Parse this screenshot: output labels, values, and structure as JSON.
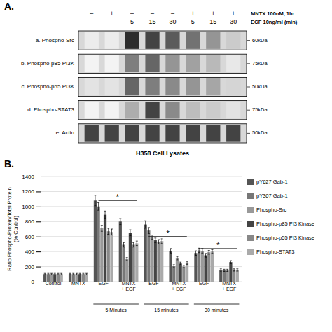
{
  "chart_data": [
    {
      "type": "heatmap",
      "title": "A.",
      "xlabel": "H358 Cell Lysates",
      "y_categories": [
        "a. Phospho-Src",
        "b. Phospho-p85 PI3K",
        "c. Phospho-p55 PI3K",
        "d. Phospho-STAT3",
        "e. Actin"
      ],
      "y2_categories": [
        "60kDa",
        "75kDa",
        "50kDa",
        "75kDa",
        "50kDa"
      ],
      "column_headers": [
        {
          "name": "MNTX 100nM, 1hr",
          "labels": [
            "–",
            "+",
            "–",
            "–",
            "–",
            "+",
            "+",
            "+"
          ]
        },
        {
          "name": "EGF 10ng/ml (min)",
          "labels": [
            "–",
            "–",
            "5",
            "15",
            "30",
            "5",
            "15",
            "30"
          ]
        }
      ],
      "cells": [
        [
          0.08,
          0.08,
          0.9,
          0.8,
          0.7,
          0.6,
          0.45,
          0.22
        ],
        [
          0.05,
          0.05,
          0.55,
          0.65,
          0.45,
          0.4,
          0.3,
          0.1
        ],
        [
          0.12,
          0.12,
          0.65,
          0.55,
          0.5,
          0.45,
          0.38,
          0.18
        ],
        [
          0.05,
          0.05,
          0.35,
          0.8,
          0.5,
          0.28,
          0.22,
          0.12
        ],
        [
          0.8,
          0.8,
          0.8,
          0.8,
          0.8,
          0.8,
          0.8,
          0.8
        ]
      ],
      "clim": [
        0,
        1
      ]
    },
    {
      "type": "bar",
      "title": "B.",
      "ylabel": "Ratio Phospho-Protein/Total Protein\n(% Control)",
      "categories": [
        "Control",
        "MNTX",
        "EGF",
        "MNTX\n+ EGF",
        "EGF",
        "MNTX\n+ EGF",
        "EGF",
        "MNTX\n+ EGF"
      ],
      "series": [
        {
          "name": "pY627 Gab-1",
          "color": "#555555",
          "values": [
            100,
            100,
            1080,
            800,
            760,
            410,
            380,
            150
          ],
          "errors": [
            10,
            10,
            70,
            40,
            50,
            30,
            30,
            20
          ]
        },
        {
          "name": "pY307 Gab-1",
          "color": "#777777",
          "values": [
            100,
            100,
            1000,
            490,
            680,
            205,
            415,
            150
          ],
          "errors": [
            10,
            10,
            50,
            30,
            40,
            20,
            30,
            15
          ]
        },
        {
          "name": "Phospho-Src",
          "color": "#999999",
          "values": [
            100,
            100,
            710,
            300,
            590,
            310,
            410,
            150
          ],
          "errors": [
            10,
            10,
            40,
            20,
            30,
            20,
            30,
            15
          ]
        },
        {
          "name": "Phospho-p85 PI3 Kinase",
          "color": "#444444",
          "values": [
            100,
            100,
            890,
            650,
            550,
            240,
            350,
            260
          ],
          "errors": [
            10,
            10,
            50,
            40,
            30,
            20,
            25,
            20
          ]
        },
        {
          "name": "Phospho-p55 PI3 Kinase",
          "color": "#888888",
          "values": [
            100,
            100,
            670,
            490,
            530,
            200,
            390,
            155
          ],
          "errors": [
            10,
            10,
            40,
            30,
            30,
            15,
            25,
            15
          ]
        },
        {
          "name": "Phospho-STAT3",
          "color": "#aaaaaa",
          "values": [
            100,
            100,
            660,
            510,
            540,
            250,
            400,
            155
          ],
          "errors": [
            10,
            10,
            40,
            30,
            30,
            20,
            25,
            15
          ]
        }
      ],
      "category_groups": [
        {
          "label": "5 Minutes",
          "from": 2,
          "to": 3
        },
        {
          "label": "15 minutes",
          "from": 4,
          "to": 5
        },
        {
          "label": "30 minutes",
          "from": 6,
          "to": 7
        }
      ],
      "significance": [
        {
          "label": "*",
          "from": 2,
          "to": 3,
          "y": 1080
        },
        {
          "label": "*",
          "from": 4,
          "to": 5,
          "y": 600
        },
        {
          "label": "*",
          "from": 6,
          "to": 7,
          "y": 440
        }
      ],
      "ylim": [
        0,
        1400
      ],
      "yticks": [
        0,
        200,
        400,
        600,
        800,
        1000,
        1200,
        1400
      ],
      "grid": true,
      "legend": "right"
    }
  ]
}
